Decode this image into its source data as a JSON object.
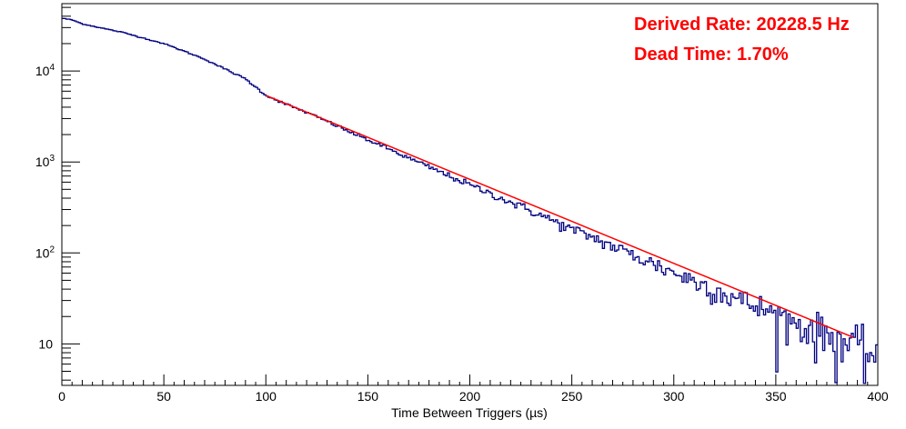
{
  "chart_data": {
    "type": "line",
    "title": "",
    "xlabel": "Time Between Triggers (µs)",
    "ylabel": "",
    "xlim": [
      0,
      400
    ],
    "ylim": [
      3.5,
      55000
    ],
    "yscale": "log",
    "grid": false,
    "x_ticks": [
      0,
      50,
      100,
      150,
      200,
      250,
      300,
      350,
      400
    ],
    "y_ticks": [
      {
        "value": 10,
        "base": "10",
        "exp": ""
      },
      {
        "value": 100,
        "base": "10",
        "exp": "2"
      },
      {
        "value": 1000,
        "base": "10",
        "exp": "3"
      },
      {
        "value": 10000,
        "base": "10",
        "exp": "4"
      }
    ],
    "annotations": [
      "Derived Rate: 20228.5 Hz",
      "Dead Time: 1.70%"
    ],
    "series": [
      {
        "kind": "histogram",
        "color": "#000080",
        "x": [
          0,
          5,
          10,
          20,
          30,
          40,
          50,
          60,
          70,
          80,
          90,
          100,
          110,
          120,
          130,
          140,
          150,
          160,
          170,
          180,
          190,
          200,
          210,
          220,
          230,
          240,
          250,
          260,
          270,
          280,
          290,
          300,
          310,
          320,
          330,
          340,
          350,
          360,
          370,
          380,
          390,
          395,
          400
        ],
        "values": [
          38000,
          36500,
          33000,
          29500,
          26500,
          23000,
          20000,
          16500,
          13500,
          10500,
          8200,
          5400,
          4300,
          3500,
          2800,
          2200,
          1750,
          1400,
          1100,
          880,
          700,
          560,
          450,
          360,
          290,
          230,
          180,
          150,
          118,
          95,
          76,
          61,
          49,
          40,
          32,
          26,
          21,
          17,
          14,
          11.5,
          9,
          8,
          8
        ]
      },
      {
        "kind": "fit",
        "color": "#ff0000",
        "x_range": [
          100,
          388
        ],
        "y_range": [
          5400,
          11.8
        ]
      }
    ]
  }
}
